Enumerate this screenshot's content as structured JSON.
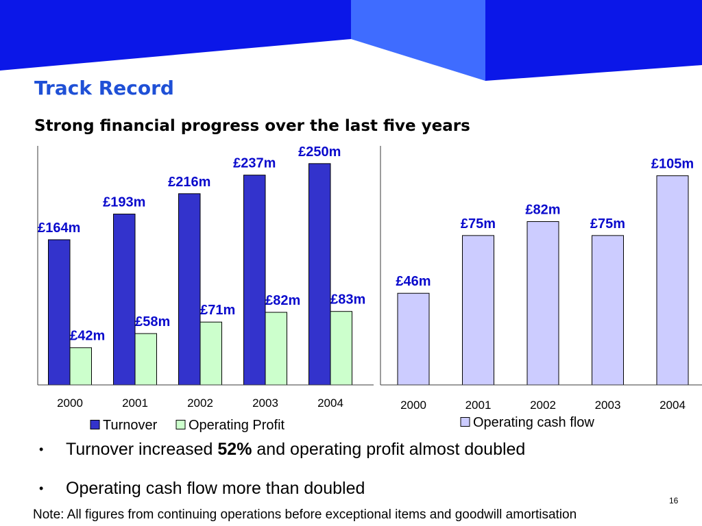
{
  "slide": {
    "title": "Track Record",
    "subtitle": "Strong financial progress over the last five years",
    "bullets": [
      {
        "glyph": "•",
        "parts": [
          "Turnover increased ",
          "52%",
          " and operating profit almost doubled"
        ]
      },
      {
        "glyph": "•",
        "parts": [
          "Operating cash flow more than doubled"
        ]
      }
    ],
    "note": "Note: All figures from continuing operations before exceptional items and goodwill amortisation",
    "page_number": "16"
  },
  "colors": {
    "header_dark": "#0b17e8",
    "header_light": "#3f6cff",
    "title": "#1f50d6",
    "data_label": "#0a0acc"
  },
  "chart_data": [
    {
      "type": "bar",
      "categories": [
        "2000",
        "2001",
        "2002",
        "2003",
        "2004"
      ],
      "series": [
        {
          "name": "Turnover",
          "values": [
            164,
            193,
            216,
            237,
            250
          ],
          "data_labels": [
            "£164m",
            "£193m",
            "£216m",
            "£237m",
            "£250m"
          ],
          "color": "#3333cc"
        },
        {
          "name": "Operating Profit",
          "values": [
            42,
            58,
            71,
            82,
            83
          ],
          "data_labels": [
            "£42m",
            "£58m",
            "£71m",
            "£82m",
            "£83m"
          ],
          "color": "#ccffcc"
        }
      ],
      "ylim": [
        0,
        270
      ],
      "grid": false,
      "legend": "bottom"
    },
    {
      "type": "bar",
      "categories": [
        "2000",
        "2001",
        "2002",
        "2003",
        "2004"
      ],
      "series": [
        {
          "name": "Operating cash flow",
          "values": [
            46,
            75,
            82,
            75,
            105
          ],
          "data_labels": [
            "£46m",
            "£75m",
            "£82m",
            "£75m",
            "£105m"
          ],
          "color": "#ccccff"
        }
      ],
      "ylim": [
        0,
        120
      ],
      "grid": false,
      "legend": "bottom"
    }
  ]
}
